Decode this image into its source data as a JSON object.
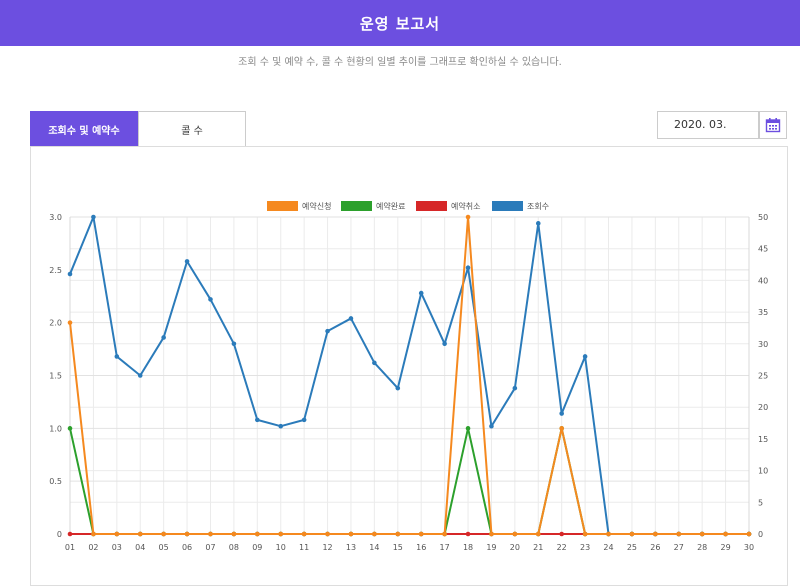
{
  "header": {
    "title": "운영 보고서"
  },
  "subtitle": "조회 수 및 예약 수, 콜 수 현황의 일별 추이를 그래프로 확인하실 수 있습니다.",
  "tabs": [
    {
      "label": "조회수 및 예약수",
      "active": true
    },
    {
      "label": "콜 수",
      "active": false
    }
  ],
  "date_picker": {
    "value": "2020. 03.",
    "icon": "calendar-icon"
  },
  "colors": {
    "accent": "#6c4fe0",
    "apply": "#f5891f",
    "done": "#2ca02c",
    "cancel": "#d62728",
    "views": "#2b7bba"
  },
  "chart_data": {
    "type": "line",
    "x": [
      "01",
      "02",
      "03",
      "04",
      "05",
      "06",
      "07",
      "08",
      "09",
      "10",
      "11",
      "12",
      "13",
      "14",
      "15",
      "16",
      "17",
      "18",
      "19",
      "20",
      "21",
      "22",
      "23",
      "24",
      "25",
      "26",
      "27",
      "28",
      "29",
      "30"
    ],
    "y_left": {
      "range": [
        0,
        3.0
      ],
      "ticks": [
        "0",
        "0.5",
        "1.0",
        "1.5",
        "2.0",
        "2.5",
        "3.0"
      ]
    },
    "y_right": {
      "range": [
        0,
        50
      ],
      "ticks": [
        "0",
        "5",
        "10",
        "15",
        "20",
        "25",
        "30",
        "35",
        "40",
        "45",
        "50"
      ]
    },
    "grid": true,
    "legend_position": "top-center",
    "series": [
      {
        "name": "예약신청",
        "axis": "left",
        "color": "#f5891f",
        "values": [
          2,
          0,
          0,
          0,
          0,
          0,
          0,
          0,
          0,
          0,
          0,
          0,
          0,
          0,
          0,
          0,
          0,
          3,
          0,
          0,
          0,
          1,
          0,
          0,
          0,
          0,
          0,
          0,
          0,
          0
        ]
      },
      {
        "name": "예약완료",
        "axis": "left",
        "color": "#2ca02c",
        "values": [
          1,
          0,
          0,
          0,
          0,
          0,
          0,
          0,
          0,
          0,
          0,
          0,
          0,
          0,
          0,
          0,
          0,
          1,
          0,
          0,
          0,
          1,
          0,
          0,
          0,
          0,
          0,
          0,
          0,
          0
        ]
      },
      {
        "name": "예약취소",
        "axis": "left",
        "color": "#d62728",
        "values": [
          0,
          0,
          0,
          0,
          0,
          0,
          0,
          0,
          0,
          0,
          0,
          0,
          0,
          0,
          0,
          0,
          0,
          0,
          0,
          0,
          0,
          0,
          0,
          0,
          0,
          0,
          0,
          0,
          0,
          0
        ]
      },
      {
        "name": "조회수",
        "axis": "right",
        "color": "#2b7bba",
        "values": [
          41,
          50,
          28,
          25,
          31,
          43,
          37,
          30,
          18,
          17,
          18,
          32,
          34,
          27,
          23,
          38,
          30,
          42,
          17,
          23,
          49,
          19,
          28,
          0,
          0,
          0,
          0,
          0,
          0,
          0
        ]
      }
    ]
  }
}
